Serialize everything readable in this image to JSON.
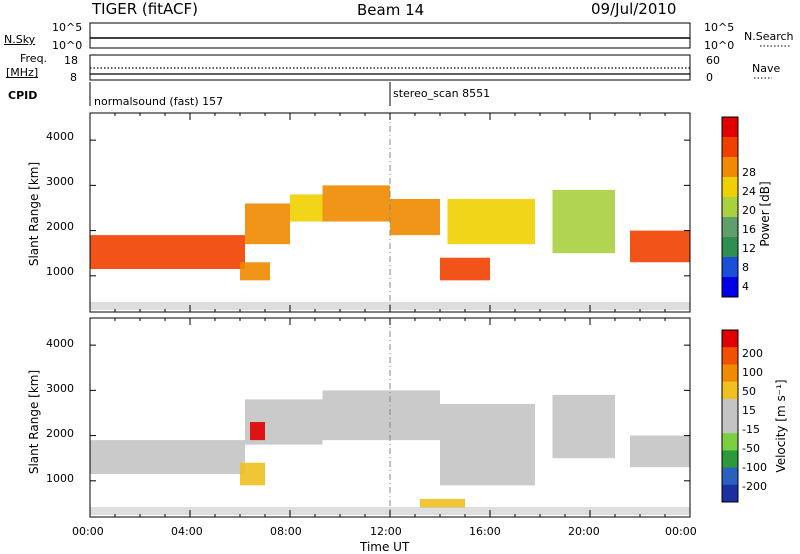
{
  "header": {
    "radar": "TIGER (fitACF)",
    "beam": "Beam 14",
    "date": "09/Jul/2010"
  },
  "summary": {
    "nsky_label": "N.Sky",
    "nsky_top": "10^5",
    "nsky_bottom": "10^0",
    "nsearch_label": "N.Search",
    "nsearch_top": "10^5",
    "nsearch_bottom": "10^0",
    "freq_label_1": "Freq.",
    "freq_label_2": "[MHz]",
    "freq_top": "18",
    "freq_bottom": "8",
    "nave_label": "Nave",
    "nave_top": "60",
    "nave_bottom": "0",
    "cpid_label": "CPID",
    "cpid_1": "normalsound (fast) 157",
    "cpid_2": "stereo_scan 8551"
  },
  "colors": {
    "power_scale": [
      "#0000e6",
      "#1a4ed8",
      "#2f8f4f",
      "#5fa06a",
      "#a8d040",
      "#f0d000",
      "#f08a00",
      "#f04000",
      "#e00000"
    ],
    "velocity_scale": [
      "#1a2fa0",
      "#2a60c0",
      "#2a9a3a",
      "#7ad040",
      "#c4c4c4",
      "#c4c4c4",
      "#f0c020",
      "#f08a00",
      "#f05000",
      "#e00000"
    ],
    "gate_fill": "#c4c4c4"
  },
  "chart_data": [
    {
      "type": "heatmap",
      "name": "power",
      "ylabel": "Slant Range [km]",
      "yticks": [
        "1000",
        "2000",
        "3000",
        "4000"
      ],
      "ylim": [
        200,
        4600
      ],
      "xlim": [
        0,
        24
      ],
      "colorbar_label": "Power [dB]",
      "colorbar_ticks": [
        "4",
        "8",
        "12",
        "16",
        "20",
        "24",
        "28"
      ],
      "colorbar_range": [
        0,
        32
      ],
      "regions": [
        {
          "t0": 0.0,
          "t1": 6.2,
          "r0": 1150,
          "r1": 1900,
          "value": 26
        },
        {
          "t0": 6.2,
          "t1": 8.0,
          "r0": 1700,
          "r1": 2600,
          "value": 24
        },
        {
          "t0": 8.0,
          "t1": 9.3,
          "r0": 2200,
          "r1": 2800,
          "value": 18
        },
        {
          "t0": 9.3,
          "t1": 12.0,
          "r0": 2200,
          "r1": 3000,
          "value": 24
        },
        {
          "t0": 12.0,
          "t1": 14.0,
          "r0": 1900,
          "r1": 2700,
          "value": 22
        },
        {
          "t0": 14.0,
          "t1": 16.0,
          "r0": 900,
          "r1": 1400,
          "value": 26
        },
        {
          "t0": 14.3,
          "t1": 17.8,
          "r0": 1700,
          "r1": 2700,
          "value": 20
        },
        {
          "t0": 18.5,
          "t1": 21.0,
          "r0": 1500,
          "r1": 2900,
          "value": 16
        },
        {
          "t0": 21.6,
          "t1": 24.0,
          "r0": 1300,
          "r1": 2000,
          "value": 26
        },
        {
          "t0": 6.0,
          "t1": 7.2,
          "r0": 900,
          "r1": 1300,
          "value": 22
        }
      ]
    },
    {
      "type": "heatmap",
      "name": "velocity",
      "ylabel": "Slant Range [km]",
      "yticks": [
        "1000",
        "2000",
        "3000",
        "4000"
      ],
      "ylim": [
        200,
        4600
      ],
      "xlim": [
        0,
        24
      ],
      "colorbar_label": "Velocity [m s⁻¹]",
      "colorbar_ticks": [
        "200",
        "100",
        "50",
        "15",
        "-15",
        "-50",
        "-100",
        "-200"
      ],
      "colorbar_range": [
        -250,
        250
      ],
      "regions": [
        {
          "t0": 0.0,
          "t1": 6.2,
          "r0": 1150,
          "r1": 1900,
          "value": 0
        },
        {
          "t0": 6.2,
          "t1": 9.3,
          "r0": 1800,
          "r1": 2800,
          "value": 0
        },
        {
          "t0": 6.4,
          "t1": 7.0,
          "r0": 1900,
          "r1": 2300,
          "value": 220
        },
        {
          "t0": 9.3,
          "t1": 14.0,
          "r0": 1900,
          "r1": 3000,
          "value": 0
        },
        {
          "t0": 14.0,
          "t1": 17.8,
          "r0": 900,
          "r1": 2700,
          "value": 0
        },
        {
          "t0": 18.5,
          "t1": 21.0,
          "r0": 1500,
          "r1": 2900,
          "value": 0
        },
        {
          "t0": 21.6,
          "t1": 24.0,
          "r0": 1300,
          "r1": 2000,
          "value": 0
        },
        {
          "t0": 6.0,
          "t1": 7.0,
          "r0": 900,
          "r1": 1400,
          "value": 60
        },
        {
          "t0": 13.2,
          "t1": 15.0,
          "r0": 400,
          "r1": 600,
          "value": 60
        }
      ]
    }
  ],
  "xaxis": {
    "ticks": [
      "00:00",
      "04:00",
      "08:00",
      "12:00",
      "16:00",
      "20:00",
      "00:00"
    ],
    "label": "Time UT"
  }
}
